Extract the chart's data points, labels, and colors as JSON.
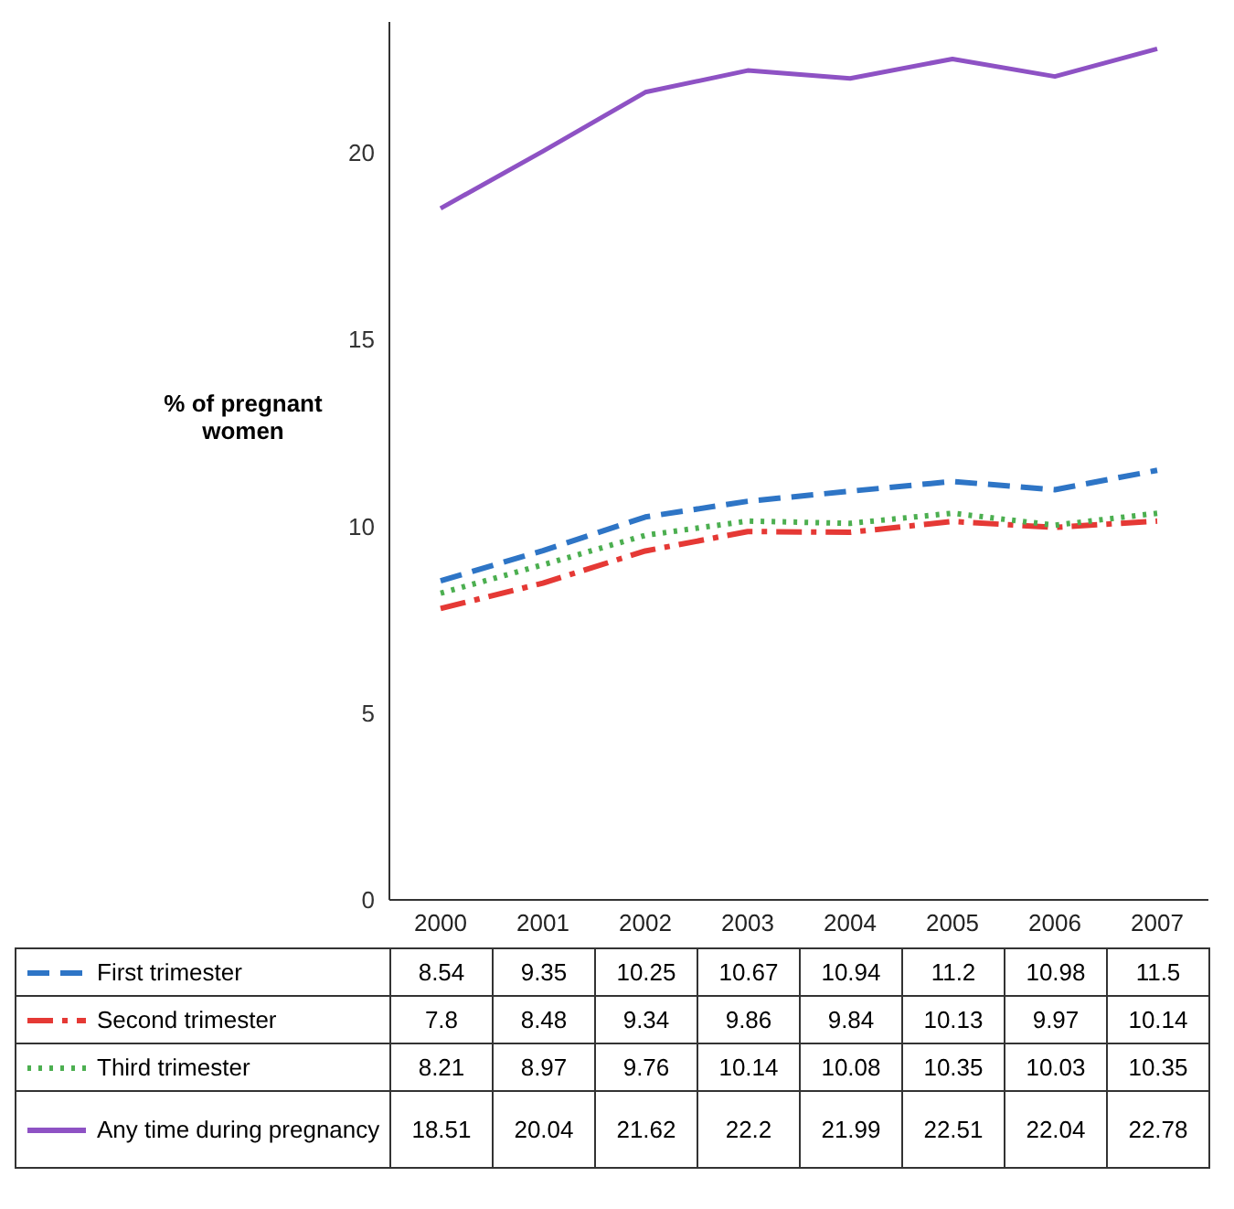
{
  "chart_data": {
    "type": "line",
    "ylabel": "% of pregnant women",
    "categories": [
      "2000",
      "2001",
      "2002",
      "2003",
      "2004",
      "2005",
      "2006",
      "2007"
    ],
    "series": [
      {
        "name": "First trimester",
        "color": "#2e75c6",
        "line_style": "dashed",
        "values": [
          8.54,
          9.35,
          10.25,
          10.67,
          10.94,
          11.2,
          10.98,
          11.5
        ]
      },
      {
        "name": "Second trimester",
        "color": "#e53935",
        "line_style": "dashdot",
        "values": [
          7.8,
          8.48,
          9.34,
          9.86,
          9.84,
          10.13,
          9.97,
          10.14
        ]
      },
      {
        "name": "Third trimester",
        "color": "#4caf50",
        "line_style": "dotted",
        "values": [
          8.21,
          8.97,
          9.76,
          10.14,
          10.08,
          10.35,
          10.03,
          10.35
        ]
      },
      {
        "name": "Any time during pregnancy",
        "color": "#8e52c4",
        "line_style": "solid",
        "values": [
          18.51,
          20.04,
          21.62,
          22.2,
          21.99,
          22.51,
          22.04,
          22.78
        ]
      }
    ],
    "ylim": [
      0,
      23.5
    ],
    "yticks": [
      0,
      5,
      10,
      15,
      20
    ],
    "grid": false,
    "marker": "none",
    "legend": "bottom",
    "data_labels": true
  }
}
